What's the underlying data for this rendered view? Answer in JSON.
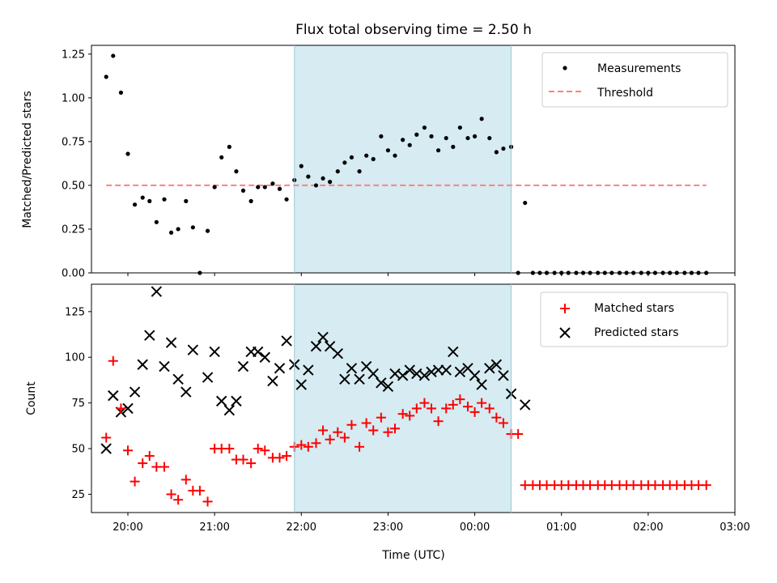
{
  "chart_data": [
    {
      "type": "scatter",
      "title": "Flux total observing time = 2.50 h",
      "xlabel": "",
      "ylabel": "Matched/Predicted stars",
      "xlim": [
        -0.42,
        7.0
      ],
      "ylim": [
        0.0,
        1.3
      ],
      "yticks": [
        0.0,
        0.25,
        0.5,
        0.75,
        1.0,
        1.25
      ],
      "ytick_labels": [
        "0.00",
        "0.25",
        "0.50",
        "0.75",
        "1.00",
        "1.25"
      ],
      "highlight_span": [
        1.92,
        4.42
      ],
      "highlight_color": "#add8e6",
      "legend_position": "upper right",
      "series": [
        {
          "name": "Measurements",
          "marker": "dot",
          "color": "#000000",
          "points": [
            [
              -0.25,
              1.12
            ],
            [
              -0.17,
              1.24
            ],
            [
              -0.08,
              1.03
            ],
            [
              0.0,
              0.68
            ],
            [
              0.08,
              0.39
            ],
            [
              0.17,
              0.43
            ],
            [
              0.25,
              0.41
            ],
            [
              0.33,
              0.29
            ],
            [
              0.42,
              0.42
            ],
            [
              0.5,
              0.23
            ],
            [
              0.58,
              0.25
            ],
            [
              0.67,
              0.41
            ],
            [
              0.75,
              0.26
            ],
            [
              0.83,
              0.0
            ],
            [
              0.92,
              0.24
            ],
            [
              1.0,
              0.49
            ],
            [
              1.08,
              0.66
            ],
            [
              1.17,
              0.72
            ],
            [
              1.25,
              0.58
            ],
            [
              1.33,
              0.47
            ],
            [
              1.42,
              0.41
            ],
            [
              1.5,
              0.49
            ],
            [
              1.58,
              0.49
            ],
            [
              1.67,
              0.51
            ],
            [
              1.75,
              0.48
            ],
            [
              1.83,
              0.42
            ],
            [
              1.92,
              0.53
            ],
            [
              2.0,
              0.61
            ],
            [
              2.08,
              0.55
            ],
            [
              2.17,
              0.5
            ],
            [
              2.25,
              0.54
            ],
            [
              2.33,
              0.52
            ],
            [
              2.42,
              0.58
            ],
            [
              2.5,
              0.63
            ],
            [
              2.58,
              0.66
            ],
            [
              2.67,
              0.58
            ],
            [
              2.75,
              0.67
            ],
            [
              2.83,
              0.65
            ],
            [
              2.92,
              0.78
            ],
            [
              3.0,
              0.7
            ],
            [
              3.08,
              0.67
            ],
            [
              3.17,
              0.76
            ],
            [
              3.25,
              0.73
            ],
            [
              3.33,
              0.79
            ],
            [
              3.42,
              0.83
            ],
            [
              3.5,
              0.78
            ],
            [
              3.58,
              0.7
            ],
            [
              3.67,
              0.77
            ],
            [
              3.75,
              0.72
            ],
            [
              3.83,
              0.83
            ],
            [
              3.92,
              0.77
            ],
            [
              4.0,
              0.78
            ],
            [
              4.08,
              0.88
            ],
            [
              4.17,
              0.77
            ],
            [
              4.25,
              0.69
            ],
            [
              4.33,
              0.71
            ],
            [
              4.42,
              0.72
            ],
            [
              4.5,
              0.0
            ],
            [
              4.58,
              0.4
            ],
            [
              4.67,
              0.0
            ],
            [
              4.75,
              0.0
            ],
            [
              4.83,
              0.0
            ],
            [
              4.92,
              0.0
            ],
            [
              5.0,
              0.0
            ],
            [
              5.08,
              0.0
            ],
            [
              5.17,
              0.0
            ],
            [
              5.25,
              0.0
            ],
            [
              5.33,
              0.0
            ],
            [
              5.42,
              0.0
            ],
            [
              5.5,
              0.0
            ],
            [
              5.58,
              0.0
            ],
            [
              5.67,
              0.0
            ],
            [
              5.75,
              0.0
            ],
            [
              5.83,
              0.0
            ],
            [
              5.92,
              0.0
            ],
            [
              6.0,
              0.0
            ],
            [
              6.08,
              0.0
            ],
            [
              6.17,
              0.0
            ],
            [
              6.25,
              0.0
            ],
            [
              6.33,
              0.0
            ],
            [
              6.42,
              0.0
            ],
            [
              6.5,
              0.0
            ],
            [
              6.58,
              0.0
            ],
            [
              6.67,
              0.0
            ]
          ]
        },
        {
          "name": "Threshold",
          "marker": "dashed-line",
          "color": "#ff7f7f",
          "points": [
            [
              -0.25,
              0.5
            ],
            [
              6.67,
              0.5
            ]
          ]
        }
      ]
    },
    {
      "type": "scatter",
      "title": "",
      "xlabel": "Time (UTC)",
      "ylabel": "Count",
      "xlim": [
        -0.42,
        7.0
      ],
      "ylim": [
        15,
        140
      ],
      "yticks": [
        25,
        50,
        75,
        100,
        125
      ],
      "ytick_labels": [
        "25",
        "50",
        "75",
        "100",
        "125"
      ],
      "xticks": [
        0,
        1,
        2,
        3,
        4,
        5,
        6,
        7
      ],
      "xtick_labels": [
        "20:00",
        "21:00",
        "22:00",
        "23:00",
        "00:00",
        "01:00",
        "02:00",
        "03:00"
      ],
      "highlight_span": [
        1.92,
        4.42
      ],
      "highlight_color": "#add8e6",
      "legend_position": "upper right",
      "series": [
        {
          "name": "Matched stars",
          "marker": "plus",
          "color": "#ff0000",
          "points": [
            [
              -0.25,
              56
            ],
            [
              -0.17,
              98
            ],
            [
              -0.08,
              72
            ],
            [
              0.0,
              49
            ],
            [
              0.08,
              32
            ],
            [
              0.17,
              42
            ],
            [
              0.25,
              46
            ],
            [
              0.33,
              40
            ],
            [
              0.42,
              40
            ],
            [
              0.5,
              25
            ],
            [
              0.58,
              22
            ],
            [
              0.67,
              33
            ],
            [
              0.75,
              27
            ],
            [
              0.83,
              27
            ],
            [
              0.92,
              21
            ],
            [
              1.0,
              50
            ],
            [
              1.08,
              50
            ],
            [
              1.17,
              50
            ],
            [
              1.25,
              44
            ],
            [
              1.33,
              44
            ],
            [
              1.42,
              42
            ],
            [
              1.5,
              50
            ],
            [
              1.58,
              49
            ],
            [
              1.67,
              45
            ],
            [
              1.75,
              45
            ],
            [
              1.83,
              46
            ],
            [
              1.92,
              51
            ],
            [
              2.0,
              52
            ],
            [
              2.08,
              51
            ],
            [
              2.17,
              53
            ],
            [
              2.25,
              60
            ],
            [
              2.33,
              55
            ],
            [
              2.42,
              59
            ],
            [
              2.5,
              56
            ],
            [
              2.58,
              63
            ],
            [
              2.67,
              51
            ],
            [
              2.75,
              64
            ],
            [
              2.83,
              60
            ],
            [
              2.92,
              67
            ],
            [
              3.0,
              59
            ],
            [
              3.08,
              61
            ],
            [
              3.17,
              69
            ],
            [
              3.25,
              68
            ],
            [
              3.33,
              72
            ],
            [
              3.42,
              75
            ],
            [
              3.5,
              72
            ],
            [
              3.58,
              65
            ],
            [
              3.67,
              72
            ],
            [
              3.75,
              74
            ],
            [
              3.83,
              77
            ],
            [
              3.92,
              73
            ],
            [
              4.0,
              70
            ],
            [
              4.08,
              75
            ],
            [
              4.17,
              72
            ],
            [
              4.25,
              67
            ],
            [
              4.33,
              64
            ],
            [
              4.42,
              58
            ],
            [
              4.5,
              58
            ],
            [
              4.58,
              30
            ],
            [
              4.67,
              30
            ],
            [
              4.75,
              30
            ],
            [
              4.83,
              30
            ],
            [
              4.92,
              30
            ],
            [
              5.0,
              30
            ],
            [
              5.08,
              30
            ],
            [
              5.17,
              30
            ],
            [
              5.25,
              30
            ],
            [
              5.33,
              30
            ],
            [
              5.42,
              30
            ],
            [
              5.5,
              30
            ],
            [
              5.58,
              30
            ],
            [
              5.67,
              30
            ],
            [
              5.75,
              30
            ],
            [
              5.83,
              30
            ],
            [
              5.92,
              30
            ],
            [
              6.0,
              30
            ],
            [
              6.08,
              30
            ],
            [
              6.17,
              30
            ],
            [
              6.25,
              30
            ],
            [
              6.33,
              30
            ],
            [
              6.42,
              30
            ],
            [
              6.5,
              30
            ],
            [
              6.58,
              30
            ],
            [
              6.67,
              30
            ]
          ]
        },
        {
          "name": "Predicted stars",
          "marker": "x",
          "color": "#000000",
          "points": [
            [
              -0.25,
              50
            ],
            [
              -0.17,
              79
            ],
            [
              -0.08,
              70
            ],
            [
              0.0,
              72
            ],
            [
              0.08,
              81
            ],
            [
              0.17,
              96
            ],
            [
              0.25,
              112
            ],
            [
              0.33,
              136
            ],
            [
              0.42,
              95
            ],
            [
              0.5,
              108
            ],
            [
              0.58,
              88
            ],
            [
              0.67,
              81
            ],
            [
              0.75,
              104
            ],
            [
              0.92,
              89
            ],
            [
              1.0,
              103
            ],
            [
              1.08,
              76
            ],
            [
              1.17,
              71
            ],
            [
              1.25,
              76
            ],
            [
              1.33,
              95
            ],
            [
              1.42,
              103
            ],
            [
              1.5,
              103
            ],
            [
              1.58,
              100
            ],
            [
              1.67,
              87
            ],
            [
              1.75,
              94
            ],
            [
              1.83,
              109
            ],
            [
              1.92,
              96
            ],
            [
              2.0,
              85
            ],
            [
              2.08,
              93
            ],
            [
              2.17,
              106
            ],
            [
              2.25,
              111
            ],
            [
              2.33,
              106
            ],
            [
              2.42,
              102
            ],
            [
              2.5,
              88
            ],
            [
              2.58,
              94
            ],
            [
              2.67,
              88
            ],
            [
              2.75,
              95
            ],
            [
              2.83,
              91
            ],
            [
              2.92,
              86
            ],
            [
              3.0,
              84
            ],
            [
              3.08,
              91
            ],
            [
              3.17,
              90
            ],
            [
              3.25,
              93
            ],
            [
              3.33,
              91
            ],
            [
              3.42,
              90
            ],
            [
              3.5,
              92
            ],
            [
              3.58,
              93
            ],
            [
              3.67,
              93
            ],
            [
              3.75,
              103
            ],
            [
              3.83,
              92
            ],
            [
              3.92,
              94
            ],
            [
              4.0,
              90
            ],
            [
              4.08,
              85
            ],
            [
              4.17,
              94
            ],
            [
              4.25,
              96
            ],
            [
              4.33,
              90
            ],
            [
              4.42,
              80
            ],
            [
              4.58,
              74
            ]
          ]
        }
      ]
    }
  ],
  "colors": {
    "highlight": "#add8e6",
    "threshold": "#ff7f7f",
    "matched": "#ff0000",
    "predicted": "#000000"
  }
}
